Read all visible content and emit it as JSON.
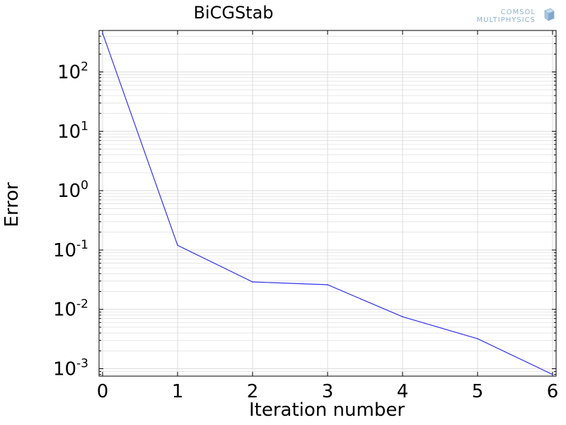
{
  "branding": {
    "logo_line1": "COMSOL",
    "logo_line2": "MULTIPHYSICS"
  },
  "colors": {
    "series": "#3333ee",
    "grid": "#dcdcdc",
    "axis": "#000000",
    "logo": "#8fb3d1"
  },
  "chart_data": {
    "type": "line",
    "title": "BiCGStab",
    "xlabel": "Iteration number",
    "ylabel": "Error",
    "xlim": [
      0,
      6
    ],
    "ylim": [
      0.00075,
      500
    ],
    "yscale": "log",
    "grid": true,
    "x_ticks": [
      {
        "value": 0,
        "label": "0"
      },
      {
        "value": 1,
        "label": "1"
      },
      {
        "value": 2,
        "label": "2"
      },
      {
        "value": 3,
        "label": "3"
      },
      {
        "value": 4,
        "label": "4"
      },
      {
        "value": 5,
        "label": "5"
      },
      {
        "value": 6,
        "label": "6"
      }
    ],
    "y_ticks": [
      {
        "value": 100,
        "base": "10",
        "exp": "2"
      },
      {
        "value": 10,
        "base": "10",
        "exp": "1"
      },
      {
        "value": 1,
        "base": "10",
        "exp": "0"
      },
      {
        "value": 0.1,
        "base": "10",
        "exp": "-1"
      },
      {
        "value": 0.01,
        "base": "10",
        "exp": "-2"
      },
      {
        "value": 0.001,
        "base": "10",
        "exp": "-3"
      }
    ],
    "series": [
      {
        "x": [
          0,
          1,
          2,
          3,
          4,
          5,
          6
        ],
        "y": [
          450,
          0.12,
          0.029,
          0.026,
          0.0075,
          0.0032,
          0.0008
        ]
      }
    ]
  }
}
